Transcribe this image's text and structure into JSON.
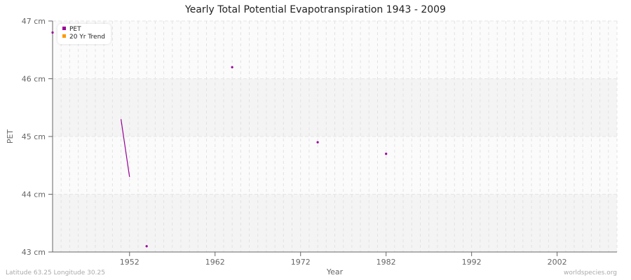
{
  "title": "Yearly Total Potential Evapotranspiration 1943 - 2009",
  "footer": {
    "left": "Latitude 63.25 Longitude 30.25",
    "right": "worldspecies.org"
  },
  "legend": [
    {
      "label": "PET",
      "color": "#990099"
    },
    {
      "label": "20 Yr Trend",
      "color": "#ff9900"
    }
  ],
  "axes": {
    "xlabel": "Year",
    "ylabel": "PET",
    "xticks": [
      "1952",
      "1962",
      "1972",
      "1982",
      "1992",
      "2002"
    ],
    "yticks": [
      "43 cm",
      "44 cm",
      "45 cm",
      "46 cm",
      "47 cm"
    ]
  },
  "chart_data": {
    "type": "line",
    "title": "Yearly Total Potential Evapotranspiration 1943 - 2009",
    "xlabel": "Year",
    "ylabel": "PET",
    "xlim": [
      1943,
      2009
    ],
    "ylim": [
      43,
      47
    ],
    "grid": true,
    "legend_position": "top-left",
    "x_ticks": [
      1952,
      1962,
      1972,
      1982,
      1992,
      2002
    ],
    "y_ticks": [
      43,
      44,
      45,
      46,
      47
    ],
    "y_unit": "cm",
    "series": [
      {
        "name": "PET",
        "color": "#990099",
        "points": [
          {
            "x": 1943,
            "y": 46.8
          },
          {
            "x": 1951,
            "y": 45.3
          },
          {
            "x": 1952,
            "y": 44.3
          },
          {
            "x": 1954,
            "y": 43.1
          },
          {
            "x": 1964,
            "y": 46.2
          },
          {
            "x": 1974,
            "y": 44.9
          },
          {
            "x": 1982,
            "y": 44.7
          }
        ],
        "segments": [
          [
            1951,
            1952
          ]
        ]
      },
      {
        "name": "20 Yr Trend",
        "color": "#ff9900",
        "points": []
      }
    ]
  }
}
